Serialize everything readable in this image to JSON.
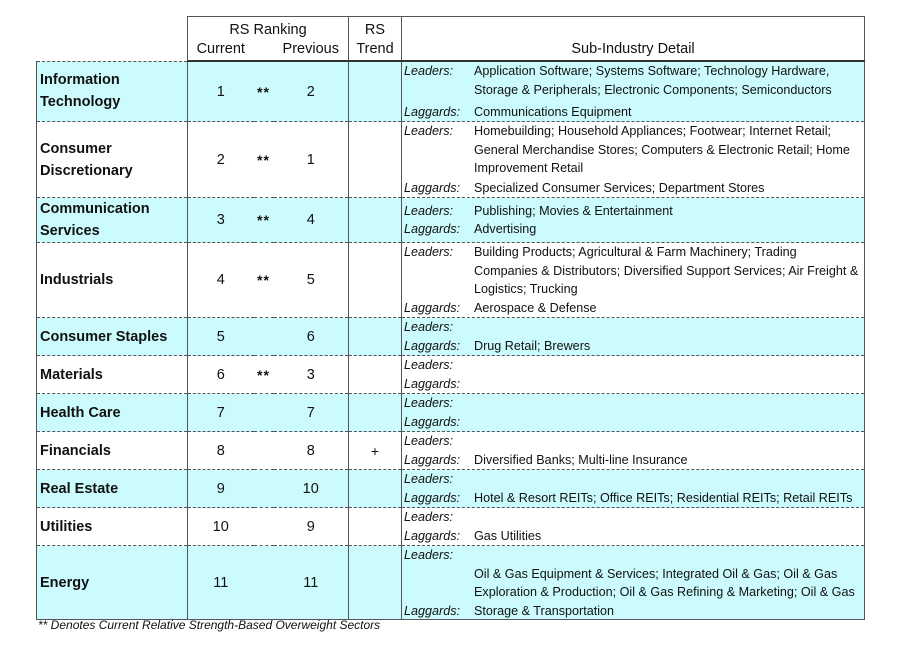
{
  "header": {
    "rs_ranking": "RS Ranking",
    "current": "Current",
    "previous": "Previous",
    "rs": "RS",
    "trend": "Trend",
    "sub_industry_detail": "Sub-Industry Detail"
  },
  "labels": {
    "leaders": "Leaders:",
    "laggards": "Laggards:"
  },
  "sectors": [
    {
      "name": "Information Technology",
      "current": "1",
      "stars": "**",
      "previous": "2",
      "trend": "",
      "leaders": "Application Software; Systems Software; Technology Hardware, Storage & Peripherals; Electronic Components; Semiconductors",
      "laggards": "Communications Equipment"
    },
    {
      "name": "Consumer Discretionary",
      "current": "2",
      "stars": "**",
      "previous": "1",
      "trend": "",
      "leaders": "Homebuilding; Household Appliances; Footwear; Internet Retail; General Merchandise Stores; Computers & Electronic Retail; Home Improvement Retail",
      "laggards": "Specialized Consumer Services; Department Stores"
    },
    {
      "name": "Communication Services",
      "current": "3",
      "stars": "**",
      "previous": "4",
      "trend": "",
      "leaders": "Publishing; Movies & Entertainment",
      "laggards": "Advertising"
    },
    {
      "name": "Industrials",
      "current": "4",
      "stars": "**",
      "previous": "5",
      "trend": "",
      "leaders": "Building Products; Agricultural & Farm Machinery; Trading Companies & Distributors; Diversified Support Services; Air Freight & Logistics; Trucking",
      "laggards": "Aerospace & Defense"
    },
    {
      "name": "Consumer Staples",
      "current": "5",
      "stars": "",
      "previous": "6",
      "trend": "",
      "leaders": "",
      "laggards": "Drug Retail; Brewers"
    },
    {
      "name": "Materials",
      "current": "6",
      "stars": "**",
      "previous": "3",
      "trend": "",
      "leaders": "",
      "laggards": ""
    },
    {
      "name": "Health Care",
      "current": "7",
      "stars": "",
      "previous": "7",
      "trend": "",
      "leaders": "",
      "laggards": ""
    },
    {
      "name": "Financials",
      "current": "8",
      "stars": "",
      "previous": "8",
      "trend": "+",
      "leaders": "",
      "laggards": "Diversified Banks; Multi-line Insurance"
    },
    {
      "name": "Real Estate",
      "current": "9",
      "stars": "",
      "previous": "10",
      "trend": "",
      "leaders": "",
      "laggards": "Hotel & Resort REITs; Office REITs; Residential REITs; Retail REITs"
    },
    {
      "name": "Utilities",
      "current": "10",
      "stars": "",
      "previous": "9",
      "trend": "",
      "leaders": "",
      "laggards": "Gas Utilities"
    },
    {
      "name": "Energy",
      "current": "11",
      "stars": "",
      "previous": "11",
      "trend": "",
      "leaders": "",
      "laggards": "Oil & Gas Equipment & Services; Integrated Oil & Gas; Oil & Gas Exploration & Production; Oil & Gas Refining & Marketing; Oil & Gas Storage & Transportation"
    }
  ],
  "footnote": "** Denotes Current Relative Strength-Based Overweight Sectors",
  "colors": {
    "shade": "#ccfbfd",
    "border": "#555555"
  }
}
